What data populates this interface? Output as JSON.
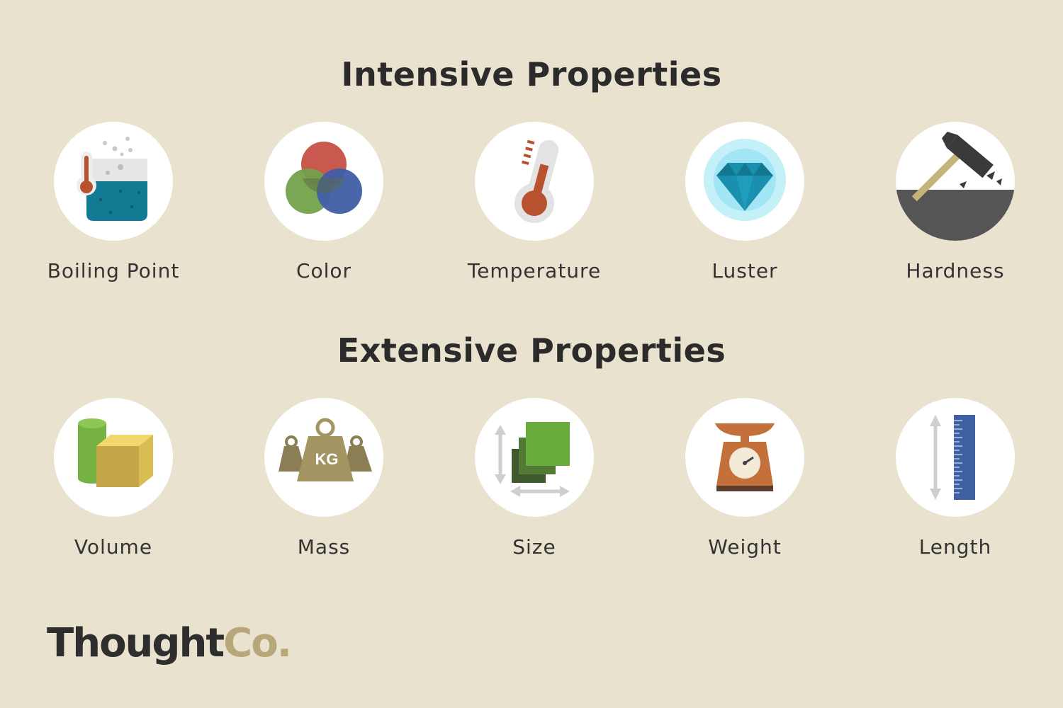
{
  "titles": {
    "intensive": "Intensive Properties",
    "extensive": "Extensive Properties"
  },
  "intensive": [
    {
      "label": "Boiling Point",
      "icon": "beaker-thermometer-icon"
    },
    {
      "label": "Color",
      "icon": "color-circles-icon"
    },
    {
      "label": "Temperature",
      "icon": "thermometer-icon"
    },
    {
      "label": "Luster",
      "icon": "diamond-icon"
    },
    {
      "label": "Hardness",
      "icon": "hammer-icon"
    }
  ],
  "extensive": [
    {
      "label": "Volume",
      "icon": "cylinder-cube-icon"
    },
    {
      "label": "Mass",
      "icon": "kg-weight-icon",
      "icon_text": "KG"
    },
    {
      "label": "Size",
      "icon": "squares-arrows-icon"
    },
    {
      "label": "Weight",
      "icon": "scale-icon"
    },
    {
      "label": "Length",
      "icon": "ruler-icon"
    }
  ],
  "brand": {
    "part1": "Thought",
    "part2": "Co."
  },
  "colors": {
    "background": "#e8e2cf",
    "text": "#2b2b2b",
    "brand_accent": "#b8a77a"
  }
}
